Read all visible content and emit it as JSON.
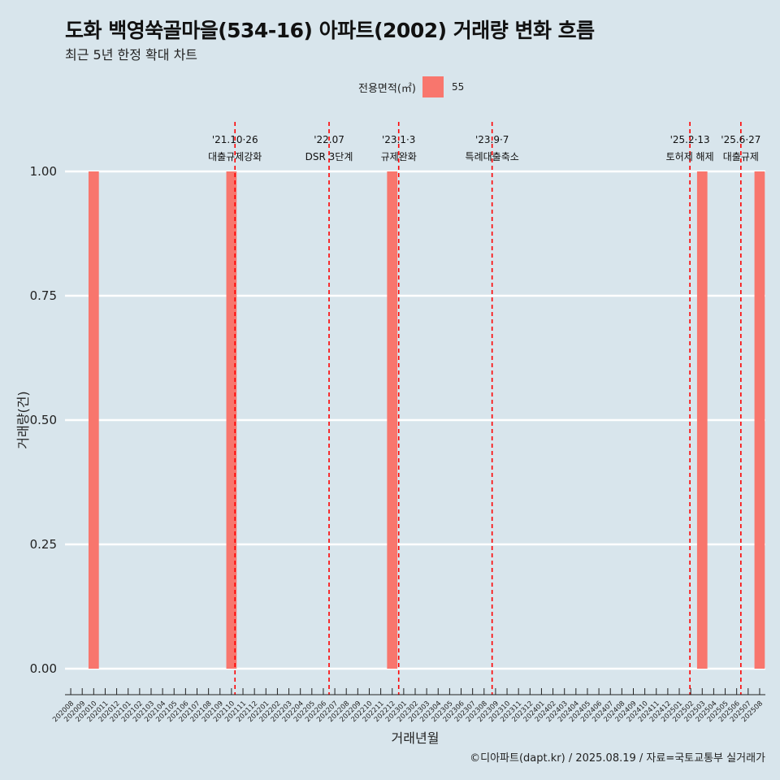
{
  "title": "도화 백영쑥골마을(534-16) 아파트(2002) 거래량 변화 흐름",
  "subtitle": "최근 5년 한정 확대 차트",
  "legend": {
    "title": "전용면적(㎡)",
    "entries": [
      {
        "label": "55",
        "color": "#f8766d"
      }
    ]
  },
  "caption": "©디아파트(dapt.kr) / 2025.08.19 / 자료=국토교통부 실거래가",
  "chart_data": {
    "type": "bar",
    "xlabel": "거래년월",
    "ylabel": "거래량(건)",
    "ylim": [
      0,
      1
    ],
    "yticks": [
      "0.00",
      "0.25",
      "0.50",
      "0.75",
      "1.00"
    ],
    "categories": [
      "202008",
      "202009",
      "202010",
      "202011",
      "202012",
      "202101",
      "202102",
      "202103",
      "202104",
      "202105",
      "202106",
      "202107",
      "202108",
      "202109",
      "202110",
      "202111",
      "202112",
      "202201",
      "202202",
      "202203",
      "202204",
      "202205",
      "202206",
      "202207",
      "202208",
      "202209",
      "202210",
      "202211",
      "202212",
      "202301",
      "202302",
      "202303",
      "202304",
      "202305",
      "202306",
      "202307",
      "202308",
      "202309",
      "202310",
      "202311",
      "202312",
      "202401",
      "202402",
      "202403",
      "202404",
      "202405",
      "202406",
      "202407",
      "202408",
      "202409",
      "202410",
      "202411",
      "202412",
      "202501",
      "202502",
      "202503",
      "202504",
      "202505",
      "202506",
      "202507",
      "202508"
    ],
    "series": [
      {
        "name": "55",
        "color": "#f8766d",
        "values": [
          0,
          0,
          1,
          0,
          0,
          0,
          0,
          0,
          0,
          0,
          0,
          0,
          0,
          0,
          1,
          0,
          0,
          0,
          0,
          0,
          0,
          0,
          0,
          0,
          0,
          0,
          0,
          0,
          1,
          0,
          0,
          0,
          0,
          0,
          0,
          0,
          0,
          0,
          0,
          0,
          0,
          0,
          0,
          0,
          0,
          0,
          0,
          0,
          0,
          0,
          0,
          0,
          0,
          0,
          0,
          1,
          0,
          0,
          0,
          0,
          1
        ]
      }
    ],
    "events": [
      {
        "date": "2021-10-26",
        "line1": "'21.10·26",
        "line2": "대출규제강화",
        "line_color": "#ff0000"
      },
      {
        "date": "2022-07-01",
        "line1": "'22.07",
        "line2": "DSR 3단계",
        "line_color": "#ff0000"
      },
      {
        "date": "2023-01-03",
        "line1": "'23.1·3",
        "line2": "규제완화",
        "line_color": "#ff0000"
      },
      {
        "date": "2023-09-07",
        "line1": "'23.9·7",
        "line2": "특례대출축소",
        "line_color": "#ff0000"
      },
      {
        "date": "2025-02-13",
        "line1": "'25.2·13",
        "line2": "토허제 해제",
        "line_color": "#ff0000"
      },
      {
        "date": "2025-06-27",
        "line1": "'25.6·27",
        "line2": "대출규제",
        "line_color": "#ff0000"
      }
    ],
    "grid": true
  }
}
